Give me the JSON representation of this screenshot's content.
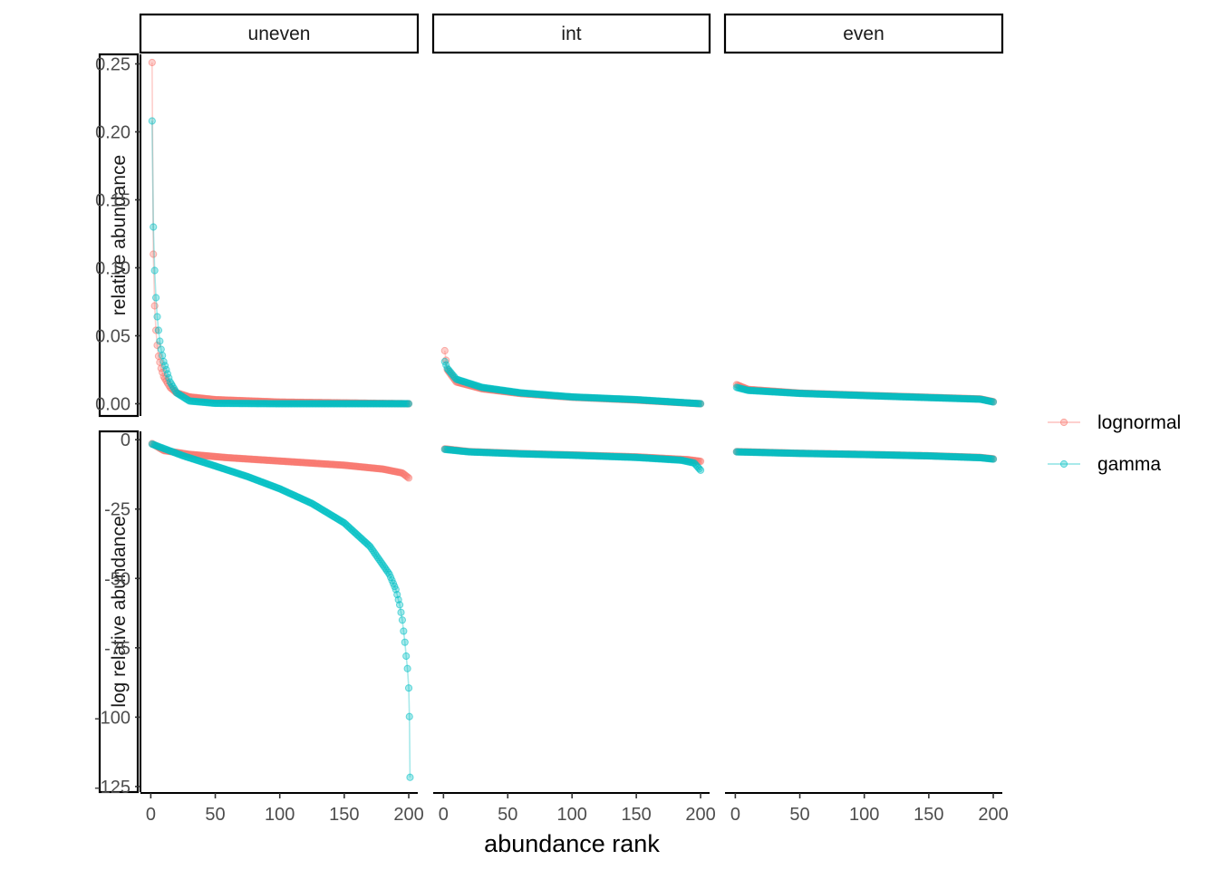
{
  "chart_data": {
    "type": "line",
    "facet_columns": [
      "uneven",
      "int",
      "even"
    ],
    "facet_rows": [
      "relative abundance",
      "log relative abundance"
    ],
    "xlabel": "abundance rank",
    "x_ticks": [
      0,
      50,
      100,
      150,
      200
    ],
    "xlim": [
      -8,
      207
    ],
    "rows": [
      {
        "name": "relative abundance",
        "ylim": [
          -0.009,
          0.257
        ],
        "y_ticks": [
          0.0,
          0.05,
          0.1,
          0.15,
          0.2,
          0.25
        ],
        "y_tick_labels": [
          "0.00",
          "0.05",
          "0.10",
          "0.15",
          "0.20",
          "0.25"
        ]
      },
      {
        "name": "log relative abundance",
        "ylim": [
          -127,
          3
        ],
        "y_ticks": [
          0,
          -25,
          -50,
          -75,
          -100,
          -125
        ],
        "y_tick_labels": [
          "0",
          "-25",
          "-50",
          "-75",
          "-100",
          "-125"
        ]
      }
    ],
    "legend_position": "right",
    "series": [
      {
        "name": "lognormal",
        "color": "#F8766D"
      },
      {
        "name": "gamma",
        "color": "#00BFC4"
      }
    ],
    "n_points": 200,
    "panels": {
      "uneven": {
        "lognormal": {
          "rel": [
            [
              1,
              0.251
            ],
            [
              2,
              0.11
            ],
            [
              3,
              0.072
            ],
            [
              4,
              0.054
            ],
            [
              5,
              0.043
            ],
            [
              6,
              0.035
            ],
            [
              8,
              0.026
            ],
            [
              10,
              0.02
            ],
            [
              15,
              0.012
            ],
            [
              20,
              0.008
            ],
            [
              30,
              0.005
            ],
            [
              50,
              0.003
            ],
            [
              100,
              0.0012
            ],
            [
              150,
              0.0006
            ],
            [
              200,
              0.0
            ]
          ],
          "log": [
            [
              1,
              -1.4
            ],
            [
              10,
              -3.9
            ],
            [
              30,
              -5.3
            ],
            [
              60,
              -6.5
            ],
            [
              100,
              -7.7
            ],
            [
              150,
              -9.2
            ],
            [
              180,
              -10.6
            ],
            [
              195,
              -12.0
            ],
            [
              200,
              -13.8
            ]
          ]
        },
        "gamma": {
          "rel": [
            [
              1,
              0.208
            ],
            [
              2,
              0.13
            ],
            [
              3,
              0.098
            ],
            [
              4,
              0.078
            ],
            [
              5,
              0.064
            ],
            [
              6,
              0.054
            ],
            [
              7,
              0.046
            ],
            [
              8,
              0.04
            ],
            [
              10,
              0.031
            ],
            [
              15,
              0.016
            ],
            [
              20,
              0.008
            ],
            [
              30,
              0.002
            ],
            [
              50,
              0.0003
            ],
            [
              100,
              0.0
            ],
            [
              200,
              0.0
            ]
          ],
          "log": [
            [
              1,
              -1.6
            ],
            [
              25,
              -5.8
            ],
            [
              50,
              -9.5
            ],
            [
              75,
              -13.3
            ],
            [
              100,
              -17.7
            ],
            [
              125,
              -23.0
            ],
            [
              150,
              -30.0
            ],
            [
              170,
              -38.5
            ],
            [
              185,
              -48.5
            ],
            [
              190,
              -54.0
            ],
            [
              193,
              -59.5
            ],
            [
              195,
              -65.0
            ],
            [
              196,
              -69.0
            ],
            [
              197,
              -73.0
            ],
            [
              198,
              -78.0
            ],
            [
              199,
              -82.5
            ],
            [
              200,
              -89.5
            ],
            [
              200.5,
              -99.8
            ],
            [
              201,
              -121.7
            ]
          ]
        }
      },
      "int": {
        "lognormal": {
          "rel": [
            [
              1,
              0.039
            ],
            [
              3,
              0.025
            ],
            [
              10,
              0.016
            ],
            [
              30,
              0.011
            ],
            [
              60,
              0.0075
            ],
            [
              100,
              0.0048
            ],
            [
              150,
              0.0027
            ],
            [
              200,
              0.0
            ]
          ],
          "log": [
            [
              1,
              -3.3
            ],
            [
              20,
              -4.3
            ],
            [
              60,
              -5.0
            ],
            [
              100,
              -5.5
            ],
            [
              150,
              -6.2
            ],
            [
              190,
              -7.2
            ],
            [
              200,
              -7.8
            ]
          ]
        },
        "gamma": {
          "rel": [
            [
              1,
              0.031
            ],
            [
              3,
              0.026
            ],
            [
              10,
              0.018
            ],
            [
              30,
              0.012
            ],
            [
              60,
              0.008
            ],
            [
              100,
              0.005
            ],
            [
              150,
              0.003
            ],
            [
              200,
              0.0
            ]
          ],
          "log": [
            [
              1,
              -3.5
            ],
            [
              20,
              -4.4
            ],
            [
              60,
              -5.1
            ],
            [
              100,
              -5.6
            ],
            [
              150,
              -6.4
            ],
            [
              185,
              -7.4
            ],
            [
              195,
              -8.4
            ],
            [
              200,
              -11.0
            ]
          ]
        }
      },
      "even": {
        "lognormal": {
          "rel": [
            [
              1,
              0.014
            ],
            [
              10,
              0.0105
            ],
            [
              50,
              0.0078
            ],
            [
              100,
              0.0062
            ],
            [
              150,
              0.0047
            ],
            [
              190,
              0.0035
            ],
            [
              200,
              0.0015
            ]
          ],
          "log": [
            [
              1,
              -4.3
            ],
            [
              50,
              -4.9
            ],
            [
              100,
              -5.3
            ],
            [
              150,
              -5.8
            ],
            [
              190,
              -6.4
            ],
            [
              200,
              -6.9
            ]
          ]
        },
        "gamma": {
          "rel": [
            [
              1,
              0.012
            ],
            [
              10,
              0.0098
            ],
            [
              50,
              0.0076
            ],
            [
              100,
              0.006
            ],
            [
              150,
              0.0045
            ],
            [
              190,
              0.0033
            ],
            [
              200,
              0.0013
            ]
          ],
          "log": [
            [
              1,
              -4.4
            ],
            [
              50,
              -4.95
            ],
            [
              100,
              -5.35
            ],
            [
              150,
              -5.85
            ],
            [
              190,
              -6.5
            ],
            [
              200,
              -7.0
            ]
          ]
        }
      }
    }
  }
}
